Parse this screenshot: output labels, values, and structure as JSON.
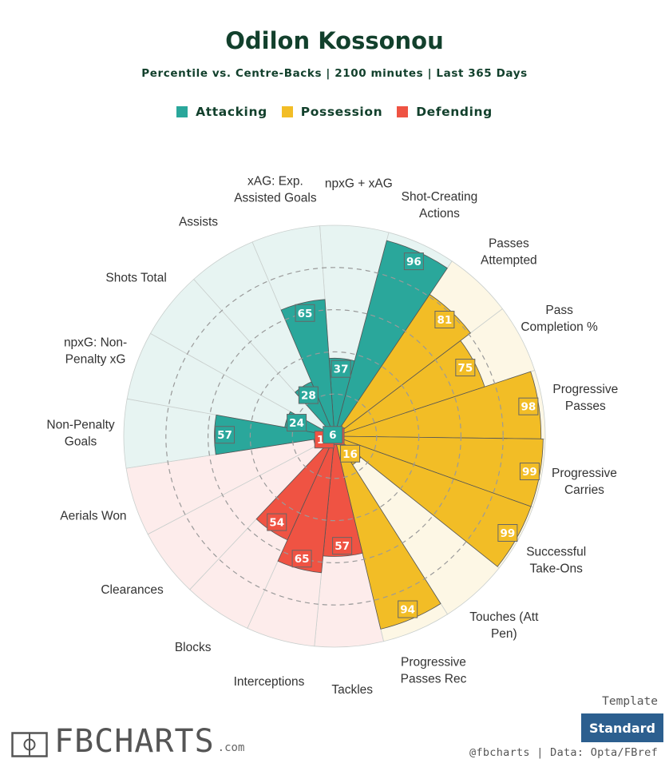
{
  "header": {
    "title": "Odilon Kossonou",
    "subtitle": "Percentile vs. Centre-Backs | 2100 minutes | Last 365 Days"
  },
  "legend": [
    {
      "label": "Attacking",
      "color": "#2aa79b"
    },
    {
      "label": "Possession",
      "color": "#f2bd26"
    },
    {
      "label": "Defending",
      "color": "#ef5343"
    }
  ],
  "chart_data": {
    "type": "polar-bar",
    "rlim": [
      0,
      100
    ],
    "grid": true,
    "series": [
      {
        "label": "npxG + xAG",
        "value": 37,
        "group": "Attacking"
      },
      {
        "label": "Shot-Creating Actions",
        "value": 96,
        "group": "Attacking"
      },
      {
        "label": "Passes Attempted",
        "value": 81,
        "group": "Possession"
      },
      {
        "label": "Pass Completion %",
        "value": 75,
        "group": "Possession"
      },
      {
        "label": "Progressive Passes",
        "value": 98,
        "group": "Possession"
      },
      {
        "label": "Progressive Carries",
        "value": 99,
        "group": "Possession"
      },
      {
        "label": "Successful Take-Ons",
        "value": 99,
        "group": "Possession"
      },
      {
        "label": "Touches (Att Pen)",
        "value": 16,
        "group": "Possession"
      },
      {
        "label": "Progressive Passes Rec",
        "value": 94,
        "group": "Possession"
      },
      {
        "label": "Tackles",
        "value": 57,
        "group": "Defending"
      },
      {
        "label": "Interceptions",
        "value": 65,
        "group": "Defending"
      },
      {
        "label": "Blocks",
        "value": 54,
        "group": "Defending"
      },
      {
        "label": "Clearances",
        "value": 3,
        "group": "Defending"
      },
      {
        "label": "Aerials Won",
        "value": 10,
        "group": "Defending"
      },
      {
        "label": "Non-Penalty Goals",
        "value": 57,
        "group": "Attacking"
      },
      {
        "label": "npxG: Non-Penalty xG",
        "value": 24,
        "group": "Attacking"
      },
      {
        "label": "Shots Total",
        "value": 6,
        "group": "Attacking"
      },
      {
        "label": "Assists",
        "value": 28,
        "group": "Attacking"
      },
      {
        "label": "xAG: Exp. Assisted Goals",
        "value": 65,
        "group": "Attacking"
      }
    ],
    "group_colors": {
      "Attacking": {
        "fill": "#2aa79b",
        "background": "#e7f4f2",
        "badge_text": "#ffffff"
      },
      "Possession": {
        "fill": "#f2bd26",
        "background": "#fdf7e5",
        "badge_text": "#ffffff"
      },
      "Defending": {
        "fill": "#ef5343",
        "background": "#fdeceb",
        "badge_text": "#ffffff"
      }
    },
    "category_labels": [
      [
        "npxG + xAG"
      ],
      [
        "Shot-Creating",
        "Actions"
      ],
      [
        "Passes",
        "Attempted"
      ],
      [
        "Pass",
        "Completion %"
      ],
      [
        "Progressive",
        "Passes"
      ],
      [
        "Progressive",
        "Carries"
      ],
      [
        "Successful",
        "Take-Ons"
      ],
      [
        "Touches (Att",
        "Pen)"
      ],
      [
        "Progressive",
        "Passes Rec"
      ],
      [
        "Tackles"
      ],
      [
        "Interceptions"
      ],
      [
        "Blocks"
      ],
      [
        "Clearances"
      ],
      [
        "Aerials Won"
      ],
      [
        "Non-Penalty",
        "Goals"
      ],
      [
        "npxG: Non-",
        "Penalty xG"
      ],
      [
        "Shots Total"
      ],
      [
        "Assists"
      ],
      [
        "xAG: Exp.",
        "Assisted Goals"
      ]
    ]
  },
  "footer": {
    "logo_text": "FBCHARTS",
    "logo_suffix": ".com",
    "template_label": "Template",
    "template_button": "Standard",
    "credit": "@fbcharts | Data: Opta/FBref"
  }
}
